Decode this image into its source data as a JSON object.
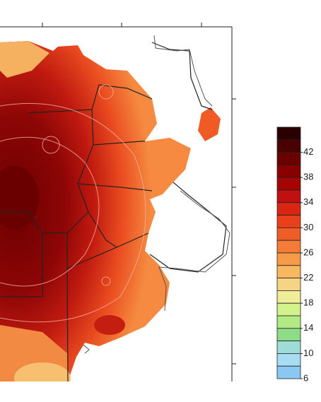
{
  "colorbar": {
    "ylim": [
      6,
      46
    ],
    "ticks": [
      42,
      38,
      34,
      30,
      26,
      22,
      18,
      14,
      10,
      6
    ],
    "colors": [
      "#2a0000",
      "#4a0000",
      "#6a0000",
      "#880000",
      "#a50404",
      "#c01010",
      "#d92512",
      "#e8401a",
      "#f05e28",
      "#f47c38",
      "#f69a48",
      "#f8b860",
      "#f7d482",
      "#eeee98",
      "#d4f28a",
      "#b2ea84",
      "#8cdc88",
      "#9edcd6",
      "#a8dcf2",
      "#88c8f2"
    ]
  }
}
